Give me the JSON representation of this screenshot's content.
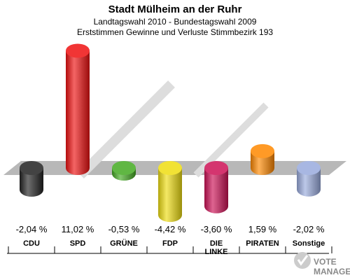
{
  "chart_data": {
    "type": "bar",
    "title": "Stadt Mülheim an der Ruhr",
    "subtitle_1": "Landtagswahl 2010 - Bundestagswahl 2009",
    "subtitle_2": "Erststimmen Gewinne und Verluste Stimmbezirk 193",
    "categories": [
      {
        "lines": [
          "CDU"
        ]
      },
      {
        "lines": [
          "SPD"
        ]
      },
      {
        "lines": [
          "GRÜNE"
        ]
      },
      {
        "lines": [
          "FDP"
        ]
      },
      {
        "lines": [
          "DIE",
          "LINKE"
        ]
      },
      {
        "lines": [
          "PIRATEN"
        ]
      },
      {
        "lines": [
          "Sonstige"
        ]
      }
    ],
    "values": [
      -2.04,
      11.02,
      -0.53,
      -4.42,
      -3.6,
      1.59,
      -2.02
    ],
    "value_labels": [
      "-2,04 %",
      "11,02 %",
      "-0,53 %",
      "-4,42 %",
      "-3,60 %",
      "1,59 %",
      "-2,02 %"
    ],
    "colors": [
      "#222222",
      "#ee1111",
      "#44aa22",
      "#eedd11",
      "#cc1155",
      "#ff8800",
      "#99aadd"
    ],
    "grid": false,
    "legend": "none"
  },
  "watermark": {
    "line1": "VOTE",
    "line2": "MANAGER"
  }
}
